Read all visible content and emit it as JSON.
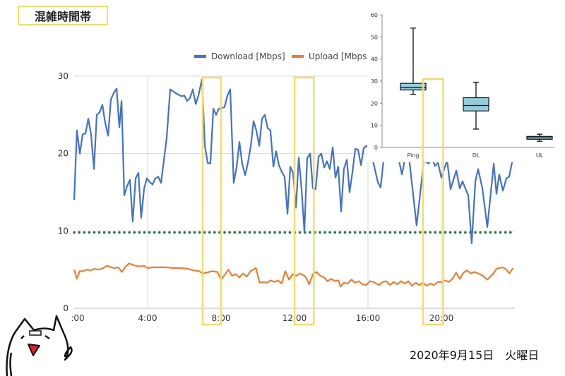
{
  "header": {
    "title": "混雑時間帯"
  },
  "footer": {
    "date": "2020年9月15日　火曜日"
  },
  "colors": {
    "download": "#4472c4",
    "upload": "#ed7d31",
    "threshold": "#1a7a2e",
    "highlight": "#f5dc6a",
    "box_fill": "#92cddc"
  },
  "chart_data": [
    {
      "type": "line",
      "title": "",
      "legend": [
        "Download [Mbps]",
        "Upload [Mbps]"
      ],
      "legend_position": "top",
      "xlabel": "",
      "ylabel": "",
      "xlim": [
        0,
        24
      ],
      "ylim": [
        0,
        30
      ],
      "x_ticks": [
        {
          "value": 0,
          "label": ":00"
        },
        {
          "value": 4,
          "label": "4:00"
        },
        {
          "value": 8,
          "label": "8:00"
        },
        {
          "value": 12,
          "label": "12:00"
        },
        {
          "value": 16,
          "label": "16:00"
        },
        {
          "value": 20,
          "label": "20:00"
        }
      ],
      "y_ticks": [
        0,
        10,
        20,
        30
      ],
      "grid": true,
      "threshold": 9.8,
      "highlight_ranges": [
        [
          7.0,
          8.0
        ],
        [
          12.0,
          13.05
        ],
        [
          19.0,
          20.1
        ]
      ],
      "series": [
        {
          "name": "Download [Mbps]",
          "points": [
            [
              0,
              14
            ],
            [
              0.15,
              23
            ],
            [
              0.31,
              20
            ],
            [
              0.46,
              22.5
            ],
            [
              0.62,
              22.6
            ],
            [
              0.77,
              24.5
            ],
            [
              0.92,
              22.5
            ],
            [
              1.08,
              18
            ],
            [
              1.23,
              25
            ],
            [
              1.38,
              25.3
            ],
            [
              1.54,
              26.3
            ],
            [
              1.69,
              24
            ],
            [
              1.85,
              22.3
            ],
            [
              2,
              27
            ],
            [
              2.15,
              27.8
            ],
            [
              2.31,
              28.4
            ],
            [
              2.46,
              23.4
            ],
            [
              2.58,
              26.8
            ],
            [
              2.73,
              14.6
            ],
            [
              2.88,
              15.8
            ],
            [
              3.04,
              16.6
            ],
            [
              3.19,
              11.2
            ],
            [
              3.35,
              16.8
            ],
            [
              3.5,
              17.5
            ],
            [
              3.65,
              11.7
            ],
            [
              3.81,
              15.5
            ],
            [
              3.96,
              16.8
            ],
            [
              4.12,
              16.3
            ],
            [
              4.27,
              16
            ],
            [
              4.42,
              16.8
            ],
            [
              4.58,
              17
            ],
            [
              4.73,
              16.2
            ],
            [
              5.04,
              22
            ],
            [
              5.23,
              28.3
            ],
            [
              5.54,
              27.8
            ],
            [
              5.85,
              27.4
            ],
            [
              6,
              27.5
            ],
            [
              6.15,
              26.8
            ],
            [
              6.31,
              27.2
            ],
            [
              6.46,
              28.3
            ],
            [
              6.62,
              26.4
            ],
            [
              6.77,
              27.5
            ],
            [
              6.96,
              29.6
            ],
            [
              7.12,
              21
            ],
            [
              7.27,
              18.8
            ],
            [
              7.42,
              18.7
            ],
            [
              7.58,
              25.8
            ],
            [
              7.73,
              25
            ],
            [
              7.88,
              25.8
            ],
            [
              8.19,
              26
            ],
            [
              8.35,
              27.5
            ],
            [
              8.5,
              28.3
            ],
            [
              8.69,
              16.2
            ],
            [
              8.85,
              18.3
            ],
            [
              9,
              21.5
            ],
            [
              9.15,
              18.7
            ],
            [
              9.31,
              17.2
            ],
            [
              9.46,
              18.8
            ],
            [
              9.62,
              21
            ],
            [
              9.77,
              24.2
            ],
            [
              9.92,
              23
            ],
            [
              10.08,
              21
            ],
            [
              10.23,
              24.5
            ],
            [
              10.38,
              25
            ],
            [
              10.54,
              23.3
            ],
            [
              10.69,
              23
            ],
            [
              10.85,
              18.3
            ],
            [
              11,
              20.3
            ],
            [
              11.15,
              18.5
            ],
            [
              11.31,
              17.6
            ],
            [
              11.46,
              17
            ],
            [
              11.62,
              12.2
            ],
            [
              11.77,
              18.3
            ],
            [
              11.92,
              17.5
            ],
            [
              12.08,
              13
            ],
            [
              12.23,
              19.5
            ],
            [
              12.38,
              15.5
            ],
            [
              12.54,
              9.9
            ],
            [
              12.69,
              19.4
            ],
            [
              12.85,
              20
            ],
            [
              13,
              15.5
            ],
            [
              13.15,
              15.4
            ],
            [
              13.31,
              19.6
            ],
            [
              13.46,
              20
            ],
            [
              13.62,
              18.2
            ],
            [
              13.77,
              19
            ],
            [
              13.92,
              18
            ],
            [
              14.08,
              20.8
            ],
            [
              14.23,
              16.9
            ],
            [
              14.38,
              18.3
            ],
            [
              14.54,
              12.5
            ],
            [
              14.69,
              18
            ],
            [
              14.85,
              19.2
            ],
            [
              15,
              15
            ],
            [
              15.15,
              17.5
            ],
            [
              15.31,
              20.6
            ],
            [
              15.46,
              20.5
            ],
            [
              15.62,
              18.5
            ],
            [
              15.77,
              20.7
            ],
            [
              15.92,
              21
            ],
            [
              16.08,
              20.5
            ],
            [
              16.27,
              19.1
            ],
            [
              16.54,
              16.3
            ],
            [
              16.69,
              15.6
            ],
            [
              16.85,
              19.1
            ],
            [
              17.04,
              22
            ],
            [
              17.23,
              21
            ],
            [
              17.42,
              22.5
            ],
            [
              17.69,
              19.1
            ],
            [
              17.85,
              17.3
            ],
            [
              18,
              19.1
            ],
            [
              18.19,
              20.5
            ],
            [
              18.65,
              10.7
            ],
            [
              18.92,
              16.4
            ],
            [
              19.04,
              19.1
            ],
            [
              19.31,
              18.7
            ],
            [
              19.46,
              19.5
            ],
            [
              19.65,
              18.4
            ],
            [
              19.81,
              18.8
            ],
            [
              20,
              16.9
            ],
            [
              20.31,
              19.1
            ],
            [
              20.5,
              15.4
            ],
            [
              20.81,
              17.8
            ],
            [
              21,
              15.5
            ],
            [
              21.15,
              16.4
            ],
            [
              21.46,
              14.6
            ],
            [
              21.65,
              8.4
            ],
            [
              21.85,
              16.4
            ],
            [
              22,
              18
            ],
            [
              22.23,
              15.5
            ],
            [
              22.5,
              10.5
            ],
            [
              22.85,
              18.7
            ],
            [
              23,
              14.8
            ],
            [
              23.15,
              17.3
            ],
            [
              23.35,
              15.2
            ],
            [
              23.54,
              16.8
            ],
            [
              23.69,
              17
            ],
            [
              23.85,
              18.9
            ]
          ]
        },
        {
          "name": "Upload [Mbps]",
          "points": [
            [
              0,
              5.0
            ],
            [
              0.15,
              3.8
            ],
            [
              0.3,
              4.8
            ],
            [
              0.5,
              4.8
            ],
            [
              0.7,
              5.0
            ],
            [
              0.9,
              4.9
            ],
            [
              1.1,
              5.1
            ],
            [
              1.3,
              5.0
            ],
            [
              1.5,
              5.1
            ],
            [
              1.8,
              5.5
            ],
            [
              2.0,
              5.3
            ],
            [
              2.2,
              5.2
            ],
            [
              2.4,
              5.3
            ],
            [
              2.6,
              4.7
            ],
            [
              2.8,
              5.4
            ],
            [
              3.0,
              5.8
            ],
            [
              3.2,
              5.6
            ],
            [
              3.5,
              5.4
            ],
            [
              3.8,
              5.5
            ],
            [
              4.0,
              5.2
            ],
            [
              4.3,
              5.3
            ],
            [
              4.6,
              5.3
            ],
            [
              5.0,
              5.3
            ],
            [
              5.4,
              5.2
            ],
            [
              5.8,
              5.2
            ],
            [
              6.2,
              5.1
            ],
            [
              6.5,
              4.9
            ],
            [
              6.8,
              4.8
            ],
            [
              7.0,
              4.5
            ],
            [
              7.2,
              4.6
            ],
            [
              7.5,
              4.8
            ],
            [
              7.8,
              4.7
            ],
            [
              8.0,
              3.7
            ],
            [
              8.2,
              4.3
            ],
            [
              8.4,
              5.0
            ],
            [
              8.6,
              4.2
            ],
            [
              8.8,
              4.4
            ],
            [
              9.0,
              4.0
            ],
            [
              9.2,
              4.5
            ],
            [
              9.4,
              4.1
            ],
            [
              9.6,
              4.8
            ],
            [
              9.9,
              5.2
            ],
            [
              10.1,
              3.3
            ],
            [
              10.3,
              3.4
            ],
            [
              10.5,
              3.3
            ],
            [
              10.7,
              3.6
            ],
            [
              10.9,
              3.4
            ],
            [
              11.1,
              3.6
            ],
            [
              11.3,
              3.2
            ],
            [
              11.5,
              4.8
            ],
            [
              11.7,
              3.7
            ],
            [
              11.9,
              4.4
            ],
            [
              12.1,
              4.2
            ],
            [
              12.3,
              4.5
            ],
            [
              12.6,
              4.1
            ],
            [
              12.8,
              3.1
            ],
            [
              13.0,
              4.4
            ],
            [
              13.2,
              4.7
            ],
            [
              13.4,
              4.2
            ],
            [
              13.6,
              4.0
            ],
            [
              13.8,
              3.5
            ],
            [
              14.0,
              3.8
            ],
            [
              14.2,
              3.5
            ],
            [
              14.4,
              3.6
            ],
            [
              14.5,
              2.8
            ],
            [
              14.7,
              3.3
            ],
            [
              14.9,
              3.2
            ],
            [
              15.1,
              3.7
            ],
            [
              15.3,
              3.3
            ],
            [
              15.5,
              3.5
            ],
            [
              15.7,
              3.1
            ],
            [
              15.9,
              3.0
            ],
            [
              16.1,
              3.5
            ],
            [
              16.3,
              3.4
            ],
            [
              16.6,
              3.0
            ],
            [
              16.8,
              3.4
            ],
            [
              17.0,
              3.5
            ],
            [
              17.2,
              3.0
            ],
            [
              17.4,
              3.4
            ],
            [
              17.6,
              3.1
            ],
            [
              17.8,
              3.5
            ],
            [
              18.0,
              3.2
            ],
            [
              18.2,
              3.5
            ],
            [
              18.4,
              2.9
            ],
            [
              18.6,
              3.3
            ],
            [
              18.8,
              3.0
            ],
            [
              19.0,
              3.3
            ],
            [
              19.2,
              2.9
            ],
            [
              19.4,
              3.2
            ],
            [
              19.6,
              3.0
            ],
            [
              19.8,
              3.4
            ],
            [
              20.0,
              3.4
            ],
            [
              20.2,
              3.6
            ],
            [
              20.4,
              3.4
            ],
            [
              20.6,
              3.8
            ],
            [
              20.8,
              4.6
            ],
            [
              21.0,
              3.8
            ],
            [
              21.2,
              4.6
            ],
            [
              21.4,
              4.9
            ],
            [
              21.6,
              4.5
            ],
            [
              21.8,
              4.7
            ],
            [
              22.0,
              4.5
            ],
            [
              22.2,
              4.3
            ],
            [
              22.5,
              3.7
            ],
            [
              22.8,
              4.4
            ],
            [
              23.0,
              5.1
            ],
            [
              23.3,
              5.3
            ],
            [
              23.5,
              5.1
            ],
            [
              23.7,
              4.5
            ],
            [
              23.9,
              5.2
            ]
          ]
        }
      ]
    },
    {
      "type": "box",
      "ylim": [
        0,
        60
      ],
      "y_ticks": [
        0,
        10,
        20,
        30,
        40,
        50,
        60
      ],
      "categories": [
        "Ping",
        "DL",
        "UL"
      ],
      "boxes": [
        {
          "label": "Ping",
          "min": 24,
          "q1": 26,
          "median": 27,
          "q3": 29,
          "max": 54
        },
        {
          "label": "DL",
          "min": 8.3,
          "q1": 16.5,
          "median": 19,
          "q3": 22.5,
          "max": 29.5
        },
        {
          "label": "UL",
          "min": 2.8,
          "q1": 3.7,
          "median": 4.3,
          "q3": 5,
          "max": 6
        }
      ]
    }
  ]
}
